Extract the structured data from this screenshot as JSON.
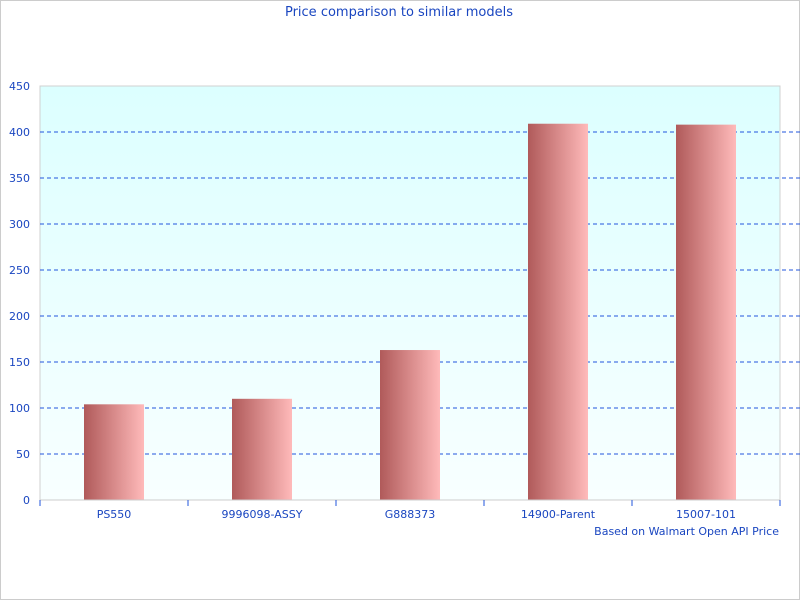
{
  "chart_data": {
    "type": "bar",
    "title": "Price comparison to similar models",
    "categories": [
      "PS550",
      "9996098-ASSY",
      "G888373",
      "14900-Parent",
      "15007-101"
    ],
    "values": [
      104,
      110,
      163,
      409,
      408
    ],
    "ylim": [
      0,
      450
    ],
    "yticks": [
      0,
      50,
      100,
      150,
      200,
      250,
      300,
      350,
      400,
      450
    ],
    "annotation": "Based on Walmart Open API Price",
    "grid": true,
    "colors": {
      "bar_dark": "#b05a5a",
      "bar_light": "#ffbaba",
      "grid": "#2255dd",
      "text": "#1a46c0",
      "plot_bg_top": "#dcffff",
      "plot_bg_bottom": "#f8ffff"
    }
  }
}
